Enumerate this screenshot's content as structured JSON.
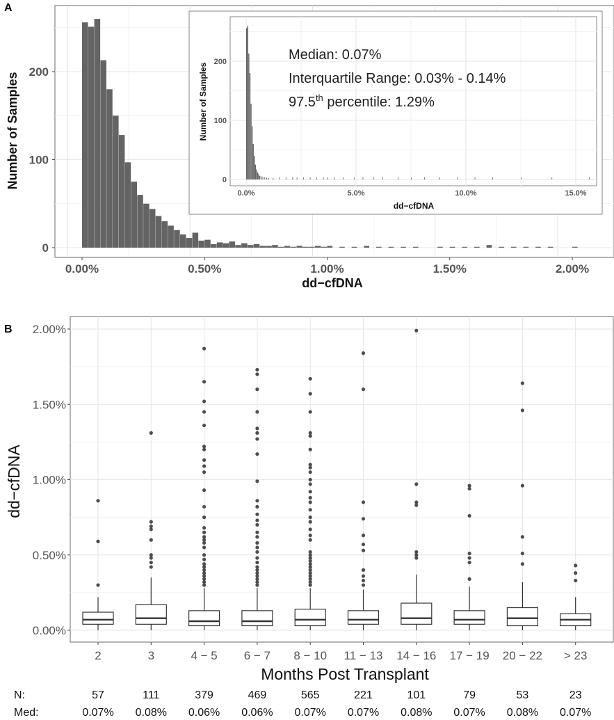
{
  "panels": {
    "a_label": "A",
    "b_label": "B"
  },
  "chart_data": [
    {
      "type": "bar",
      "panel": "A",
      "xlabel": "dd−cfDNA",
      "ylabel": "Number of Samples",
      "xlim": [
        0.0,
        2.1
      ],
      "ylim": [
        0,
        265
      ],
      "x_ticks": [
        "0.00%",
        "0.50%",
        "1.00%",
        "1.50%",
        "2.00%"
      ],
      "x_tick_values": [
        0.0,
        0.5,
        1.0,
        1.5,
        2.0
      ],
      "y_ticks": [
        "0",
        "100",
        "200"
      ],
      "y_tick_values": [
        0,
        100,
        200
      ],
      "bin_width": 0.025,
      "bins_start": [
        0.0,
        0.025,
        0.05,
        0.075,
        0.1,
        0.125,
        0.15,
        0.175,
        0.2,
        0.225,
        0.25,
        0.275,
        0.3,
        0.325,
        0.35,
        0.375,
        0.4,
        0.425,
        0.45,
        0.475,
        0.5,
        0.525,
        0.55,
        0.575,
        0.6,
        0.625,
        0.65,
        0.675,
        0.7,
        0.725,
        0.75,
        0.775,
        0.8,
        0.825,
        0.85,
        0.875,
        0.9,
        0.925,
        0.95,
        0.975,
        1.0,
        1.05,
        1.1,
        1.15,
        1.2,
        1.25,
        1.3,
        1.35,
        1.45,
        1.5,
        1.55,
        1.6,
        1.65,
        1.7,
        1.75,
        1.8,
        1.85,
        1.9,
        2.0
      ],
      "values": [
        256,
        251,
        260,
        213,
        180,
        150,
        128,
        97,
        75,
        60,
        50,
        44,
        36,
        30,
        25,
        20,
        15,
        11,
        17,
        8,
        9,
        4,
        6,
        5,
        7,
        3,
        5,
        3,
        4,
        2,
        2,
        3,
        1,
        2,
        1,
        2,
        1,
        1,
        2,
        1,
        2,
        1,
        1,
        2,
        1,
        1,
        1,
        1,
        1,
        1,
        1,
        1,
        3,
        1,
        1,
        1,
        1,
        1,
        1
      ],
      "grid": true,
      "inset": {
        "type": "bar",
        "xlabel": "dd−cfDNA",
        "ylabel": "Number of Samples",
        "xlim": [
          -0.3,
          16.0
        ],
        "ylim": [
          0,
          270
        ],
        "x_ticks": [
          "0.0%",
          "5.0%",
          "10.0%",
          "15.0%"
        ],
        "x_tick_values": [
          0,
          5,
          10,
          15
        ],
        "y_ticks": [
          "0",
          "100",
          "200"
        ],
        "y_tick_values": [
          0,
          100,
          200
        ],
        "bins_start": [
          0.0,
          0.05,
          0.1,
          0.15,
          0.2,
          0.25,
          0.3,
          0.35,
          0.4,
          0.45,
          0.5,
          0.55,
          0.6,
          0.7,
          0.8,
          0.9,
          1.0,
          1.2
        ],
        "values": [
          256,
          260,
          213,
          180,
          128,
          90,
          60,
          40,
          25,
          17,
          12,
          9,
          6,
          5,
          4,
          3,
          2,
          2
        ],
        "tail_points": [
          1.5,
          1.8,
          2.1,
          2.3,
          2.6,
          2.9,
          3.2,
          3.5,
          3.7,
          4.0,
          4.4,
          4.9,
          5.3,
          5.8,
          6.2,
          6.9,
          7.5,
          8.1,
          8.8,
          9.6,
          10.4,
          11.2,
          12.5,
          13.9,
          15.6
        ]
      },
      "annotation": {
        "median": "Median: 0.07%",
        "iqr": "Interquartile Range: 0.03% - 0.14%",
        "p975_prefix": "97.5",
        "p975_sup": "th",
        "p975_suffix": " percentile: 1.29%"
      }
    },
    {
      "type": "box",
      "panel": "B",
      "xlabel": "Months Post Transplant",
      "ylabel": "dd−cfDNA",
      "ylim": [
        -0.05,
        2.1
      ],
      "y_ticks": [
        "0.00%",
        "0.50%",
        "1.00%",
        "1.50%",
        "2.00%"
      ],
      "y_tick_values": [
        0.0,
        0.5,
        1.0,
        1.5,
        2.0
      ],
      "categories": [
        "2",
        "3",
        "4 − 5",
        "6 − 7",
        "8 − 10",
        "11 − 13",
        "14 − 16",
        "17 − 19",
        "20 − 22",
        "> 23"
      ],
      "boxes": [
        {
          "q1": 0.04,
          "median": 0.07,
          "q3": 0.12,
          "whisker_low": 0.0,
          "whisker_high": 0.22,
          "outliers": [
            0.3,
            0.59,
            0.86
          ]
        },
        {
          "q1": 0.04,
          "median": 0.08,
          "q3": 0.17,
          "whisker_low": 0.0,
          "whisker_high": 0.35,
          "outliers": [
            0.42,
            0.45,
            0.48,
            0.5,
            0.6,
            0.67,
            0.69,
            0.72,
            1.31
          ]
        },
        {
          "q1": 0.03,
          "median": 0.06,
          "q3": 0.13,
          "whisker_low": 0.0,
          "whisker_high": 0.28,
          "outliers": [
            0.3,
            0.32,
            0.34,
            0.36,
            0.38,
            0.4,
            0.42,
            0.44,
            0.47,
            0.5,
            0.55,
            0.58,
            0.6,
            0.62,
            0.65,
            0.68,
            0.75,
            0.82,
            0.93,
            1.05,
            1.09,
            1.13,
            1.2,
            1.22,
            1.36,
            1.45,
            1.52,
            1.65,
            1.87
          ]
        },
        {
          "q1": 0.03,
          "median": 0.06,
          "q3": 0.13,
          "whisker_low": 0.0,
          "whisker_high": 0.28,
          "outliers": [
            0.3,
            0.32,
            0.34,
            0.36,
            0.38,
            0.4,
            0.42,
            0.45,
            0.48,
            0.52,
            0.55,
            0.58,
            0.62,
            0.65,
            0.7,
            0.73,
            0.77,
            0.82,
            0.86,
            0.99,
            1.17,
            1.27,
            1.31,
            1.34,
            1.45,
            1.6,
            1.7,
            1.73
          ]
        },
        {
          "q1": 0.03,
          "median": 0.07,
          "q3": 0.14,
          "whisker_low": 0.0,
          "whisker_high": 0.28,
          "outliers": [
            0.3,
            0.32,
            0.34,
            0.36,
            0.38,
            0.4,
            0.42,
            0.44,
            0.46,
            0.48,
            0.5,
            0.52,
            0.6,
            0.63,
            0.67,
            0.72,
            0.75,
            0.8,
            0.85,
            0.88,
            0.92,
            0.97,
            1.0,
            1.05,
            1.08,
            1.1,
            1.2,
            1.29,
            1.31,
            1.45,
            1.57,
            1.67
          ]
        },
        {
          "q1": 0.04,
          "median": 0.07,
          "q3": 0.13,
          "whisker_low": 0.0,
          "whisker_high": 0.27,
          "outliers": [
            0.3,
            0.33,
            0.36,
            0.4,
            0.53,
            0.57,
            0.63,
            0.74,
            0.85,
            1.6,
            1.84
          ]
        },
        {
          "q1": 0.04,
          "median": 0.08,
          "q3": 0.18,
          "whisker_low": 0.0,
          "whisker_high": 0.37,
          "outliers": [
            0.48,
            0.5,
            0.52,
            0.83,
            0.85,
            0.97,
            1.99
          ]
        },
        {
          "q1": 0.04,
          "median": 0.07,
          "q3": 0.13,
          "whisker_low": 0.0,
          "whisker_high": 0.29,
          "outliers": [
            0.34,
            0.45,
            0.48,
            0.51,
            0.76,
            0.94,
            0.96
          ]
        },
        {
          "q1": 0.03,
          "median": 0.08,
          "q3": 0.15,
          "whisker_low": 0.0,
          "whisker_high": 0.32,
          "outliers": [
            0.44,
            0.51,
            0.62,
            0.96,
            1.46,
            1.64
          ]
        },
        {
          "q1": 0.03,
          "median": 0.07,
          "q3": 0.11,
          "whisker_low": 0.0,
          "whisker_high": 0.22,
          "outliers": [
            0.33,
            0.38,
            0.43
          ]
        }
      ],
      "table": {
        "n_label": "N:",
        "med_label": "Med:",
        "n": [
          "57",
          "111",
          "379",
          "469",
          "565",
          "221",
          "101",
          "79",
          "53",
          "23"
        ],
        "med": [
          "0.07%",
          "0.08%",
          "0.06%",
          "0.06%",
          "0.07%",
          "0.07%",
          "0.08%",
          "0.07%",
          "0.08%",
          "0.07%"
        ]
      }
    }
  ]
}
